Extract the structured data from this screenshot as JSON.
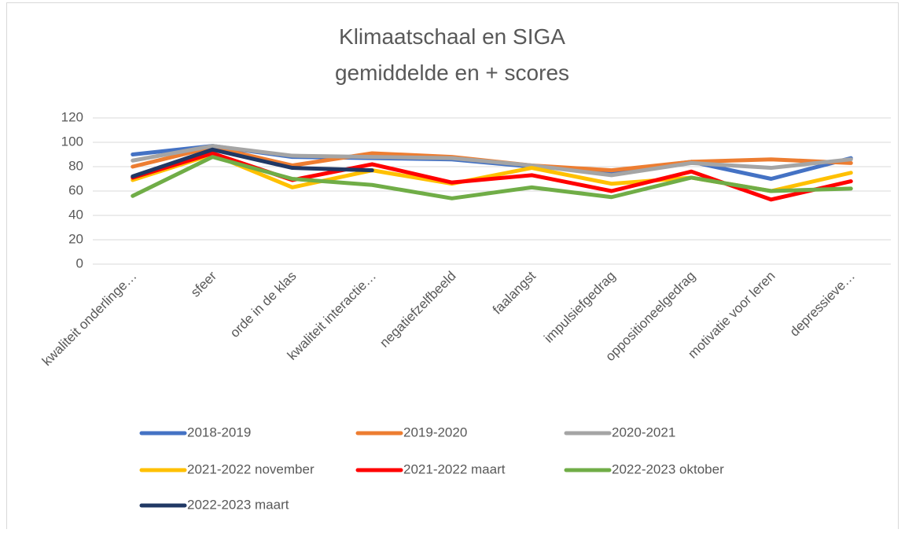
{
  "chart_data": {
    "type": "line",
    "title": "Klimaatschaal en SIGA",
    "subtitle": "gemiddelde en + scores",
    "categories": [
      "kwaliteit onderlinge…",
      "sfeer",
      "orde in de klas",
      "kwaliteit interactie…",
      "negatiefzelfbeeld",
      "faalangst",
      "impulsiefgedrag",
      "oppositioneelgedrag",
      "motivatie voor leren",
      "depressieve…"
    ],
    "series": [
      {
        "name": "2018-2019",
        "color": "#4472c4",
        "values": [
          90,
          97,
          88,
          87,
          86,
          80,
          76,
          84,
          70,
          87
        ]
      },
      {
        "name": "2019-2020",
        "color": "#ed7d31",
        "values": [
          80,
          96,
          81,
          91,
          88,
          81,
          77,
          84,
          86,
          83
        ]
      },
      {
        "name": "2020-2021",
        "color": "#a5a5a5",
        "values": [
          85,
          97,
          89,
          88,
          87,
          81,
          73,
          83,
          79,
          86
        ]
      },
      {
        "name": "2021-2022 november",
        "color": "#ffc000",
        "values": [
          69,
          90,
          63,
          77,
          66,
          79,
          66,
          71,
          60,
          75
        ]
      },
      {
        "name": "2021-2022 maart",
        "color": "#ff0000",
        "values": [
          71,
          91,
          69,
          82,
          67,
          73,
          60,
          76,
          53,
          68
        ]
      },
      {
        "name": "2022-2023 oktober",
        "color": "#70ad47",
        "values": [
          56,
          88,
          70,
          65,
          54,
          63,
          55,
          71,
          60,
          62
        ]
      },
      {
        "name": "2022-2023 maart",
        "color": "#203864",
        "values": [
          72,
          94,
          79,
          77,
          null,
          null,
          null,
          null,
          null,
          null
        ]
      }
    ],
    "ylim": [
      0,
      120
    ],
    "yticks": [
      0,
      20,
      40,
      60,
      80,
      100,
      120
    ],
    "grid": true,
    "legend": "bottom"
  }
}
